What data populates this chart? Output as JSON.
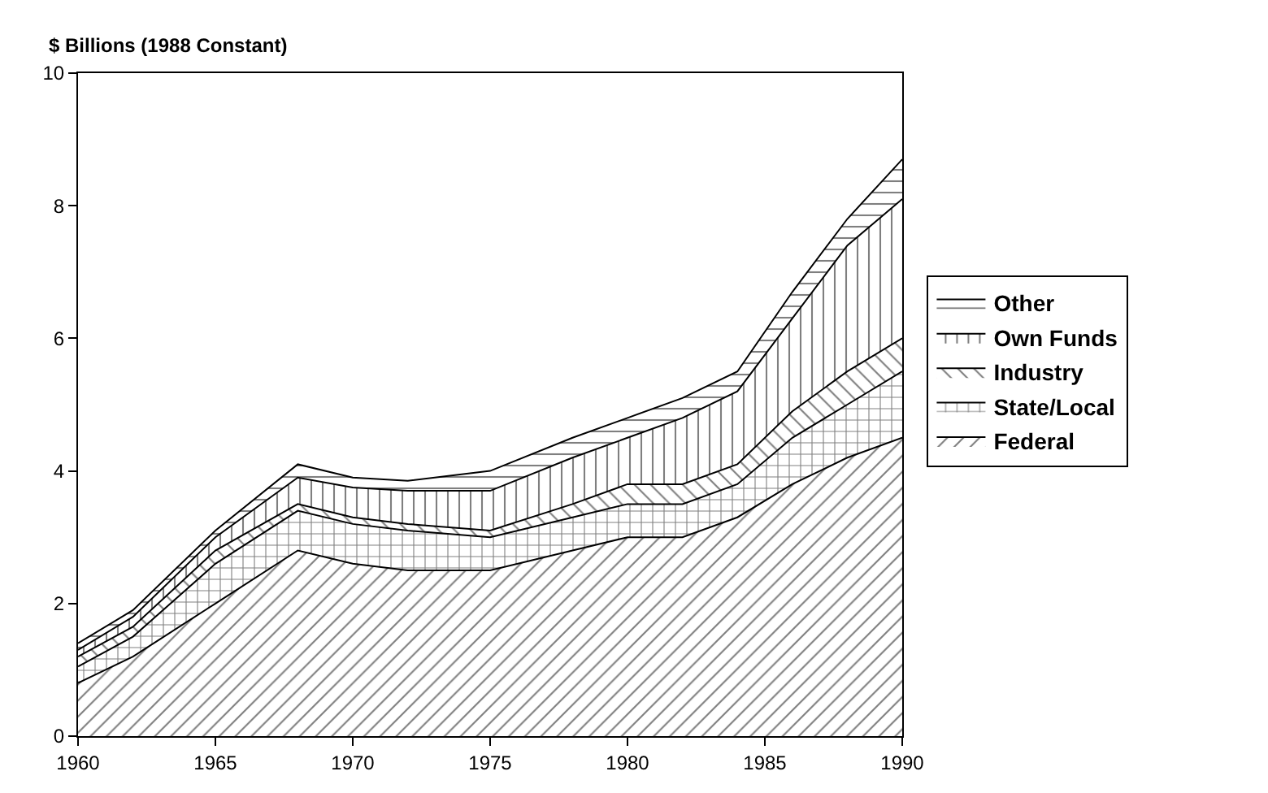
{
  "chart_data": {
    "type": "area",
    "stacked": true,
    "ylabel": "$ Billions (1988 Constant)",
    "x": [
      1960,
      1962,
      1965,
      1968,
      1970,
      1972,
      1975,
      1978,
      1980,
      1982,
      1984,
      1986,
      1988,
      1990
    ],
    "series": [
      {
        "name": "Federal",
        "color": "#000000",
        "values": [
          0.8,
          1.2,
          2.0,
          2.8,
          2.6,
          2.5,
          2.5,
          2.8,
          3.0,
          3.0,
          3.3,
          3.8,
          4.2,
          4.5
        ]
      },
      {
        "name": "State/Local",
        "color": "#000000",
        "values": [
          0.25,
          0.3,
          0.6,
          0.6,
          0.6,
          0.6,
          0.5,
          0.5,
          0.5,
          0.5,
          0.5,
          0.7,
          0.8,
          1.0
        ]
      },
      {
        "name": "Industry",
        "color": "#000000",
        "values": [
          0.15,
          0.15,
          0.2,
          0.1,
          0.1,
          0.1,
          0.1,
          0.2,
          0.3,
          0.3,
          0.3,
          0.4,
          0.5,
          0.5
        ]
      },
      {
        "name": "Own Funds",
        "color": "#000000",
        "values": [
          0.1,
          0.15,
          0.2,
          0.4,
          0.45,
          0.5,
          0.6,
          0.7,
          0.7,
          1.0,
          1.1,
          1.4,
          1.9,
          2.1
        ]
      },
      {
        "name": "Other",
        "color": "#000000",
        "values": [
          0.1,
          0.1,
          0.1,
          0.2,
          0.15,
          0.15,
          0.3,
          0.3,
          0.3,
          0.3,
          0.3,
          0.4,
          0.4,
          0.6
        ]
      }
    ],
    "xlim": [
      1960,
      1990
    ],
    "xticks": [
      1960,
      1965,
      1970,
      1975,
      1980,
      1985,
      1990
    ],
    "ylim": [
      0,
      10
    ],
    "yticks": [
      0,
      2,
      4,
      6,
      8,
      10
    ],
    "legend": "right"
  }
}
